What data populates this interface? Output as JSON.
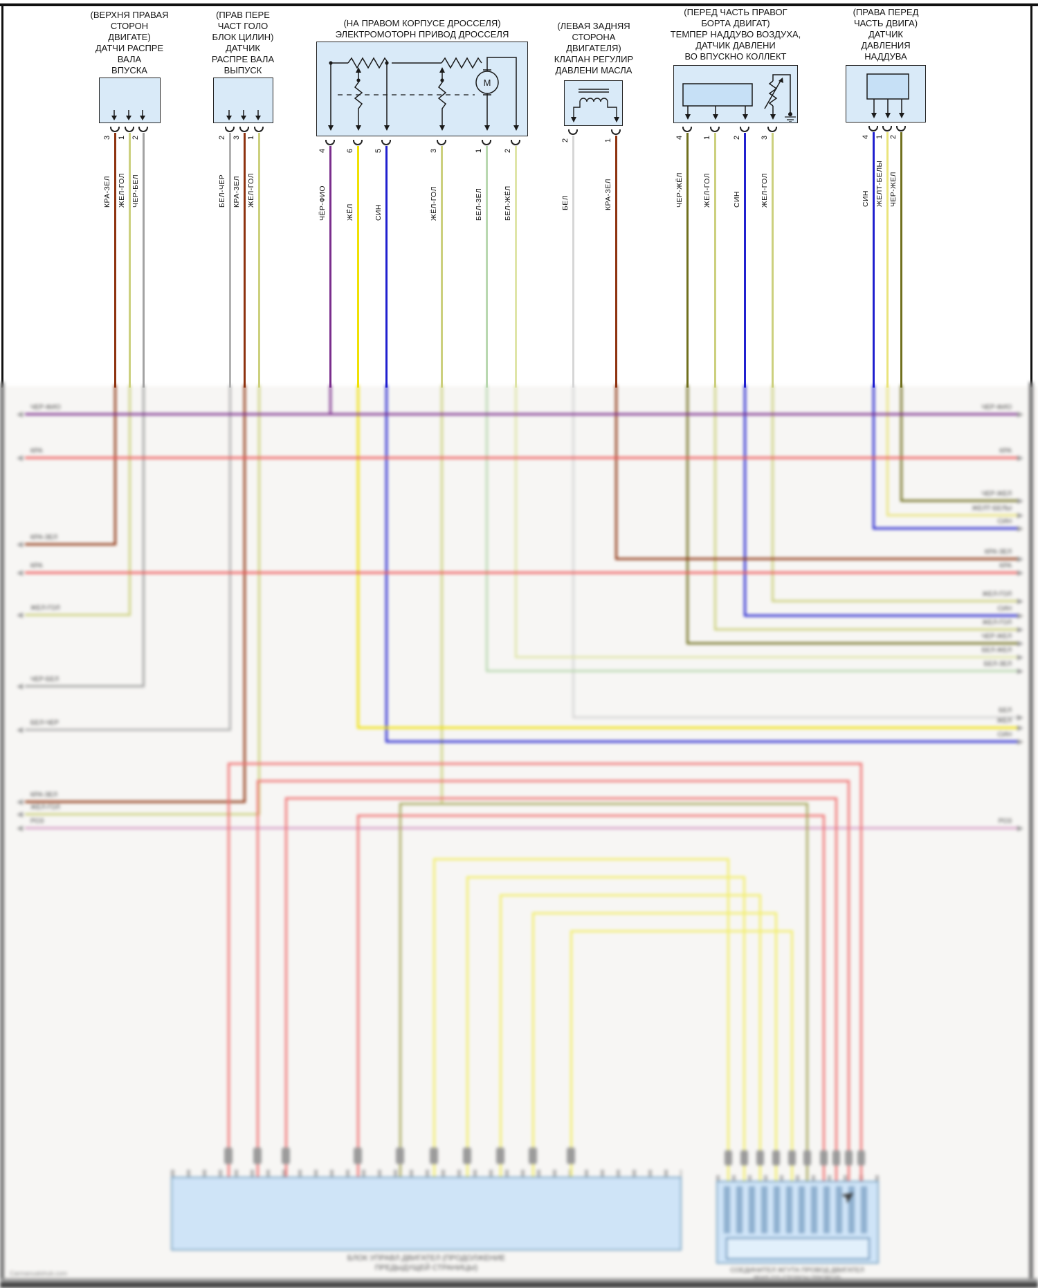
{
  "diagram_type": "automotive-wiring-diagram",
  "language": "ru",
  "colors": {
    "kra_zel": "#8e3310",
    "zhel_gol": "#ccd07e",
    "cher_bel": "#a3a3a3",
    "bel_cher": "#b0b0b0",
    "cher_fio": "#7a2d8c",
    "zhel": "#f0e104",
    "sin": "#2020cf",
    "bel_zel": "#b9d8b0",
    "bel_zhel": "#dfe5a8",
    "bel": "#d6d6d6",
    "cher_zhel": "#70701e",
    "zhelt_bely": "#eae47c",
    "red": "#ee5a5a",
    "pink": "#d79fc7",
    "nest_red": "#f07373",
    "nest_yellow": "#f2ee6e",
    "nest_olive": "#a9a95f",
    "box_fill": "#d9eaf8"
  },
  "components": [
    {
      "id": "camshaft-sensor-intake",
      "label": "(ВЕРХНЯ ПРАВАЯ\nСТОРОН\nДВИГАТЕ)\nДАТЧИ РАСПРЕ\nВАЛА\nВПУСКА",
      "pins": [
        {
          "num": "3",
          "wire": "КРА-ЗЕЛ",
          "color": "kra_zel"
        },
        {
          "num": "1",
          "wire": "ЖЕЛ-ГОЛ",
          "color": "zhel_gol"
        },
        {
          "num": "2",
          "wire": "ЧЕР-БЕЛ",
          "color": "cher_bel"
        }
      ]
    },
    {
      "id": "camshaft-sensor-exhaust",
      "label": "(ПРАВ ПЕРЕ\nЧАСТ ГОЛО\nБЛОК ЦИЛИН)\nДАТЧИК\nРАСПРЕ ВАЛА\nВЫПУСК",
      "pins": [
        {
          "num": "2",
          "wire": "БЕЛ-ЧЕР",
          "color": "bel_cher"
        },
        {
          "num": "3",
          "wire": "КРА-ЗЕЛ",
          "color": "kra_zel"
        },
        {
          "num": "1",
          "wire": "ЖЕЛ-ГОЛ",
          "color": "zhel_gol"
        }
      ]
    },
    {
      "id": "throttle-motor",
      "label": "(НА ПРАВОМ КОРПУСЕ ДРОССЕЛЯ)\nЭЛЕКТРОМОТОРН ПРИВОД ДРОССЕЛЯ",
      "pins": [
        {
          "num": "4",
          "wire": "ЧЁР-ФИО",
          "color": "cher_fio"
        },
        {
          "num": "6",
          "wire": "ЖЁЛ",
          "color": "zhel"
        },
        {
          "num": "5",
          "wire": "СИН",
          "color": "sin"
        },
        {
          "num": "3",
          "wire": "ЖЁЛ-ГОЛ",
          "color": "zhel_gol"
        },
        {
          "num": "1",
          "wire": "БЕЛ-ЗЕЛ",
          "color": "bel_zel"
        },
        {
          "num": "2",
          "wire": "БЕЛ-ЖЁЛ",
          "color": "bel_zhel"
        }
      ]
    },
    {
      "id": "oil-pressure-control-valve",
      "label": "(ЛЕВАЯ ЗАДНЯЯ\nСТОРОНА\nДВИГАТЕЛЯ)\nКЛАПАН РЕГУЛИР\nДАВЛЕНИ МАСЛА",
      "pins": [
        {
          "num": "2",
          "wire": "БЕЛ",
          "color": "bel"
        },
        {
          "num": "1",
          "wire": "КРА-ЗЕЛ",
          "color": "kra_zel"
        }
      ]
    },
    {
      "id": "boost-air-temp-manifold-pressure-sensor",
      "label": "(ПЕРЕД ЧАСТЬ ПРАВОГ\nБОРТА ДВИГАТ)\nТЕМПЕР НАДДУВО ВОЗДУХА,\nДАТЧИК ДАВЛЕНИ\nВО ВПУСКНО КОЛЛЕКТ",
      "pins": [
        {
          "num": "4",
          "wire": "ЧЕР-ЖЁЛ",
          "color": "cher_zhel"
        },
        {
          "num": "1",
          "wire": "ЖЕЛ-ГОЛ",
          "color": "zhel_gol"
        },
        {
          "num": "2",
          "wire": "СИН",
          "color": "sin"
        },
        {
          "num": "3",
          "wire": "ЖЕЛ-ГОЛ",
          "color": "zhel_gol"
        }
      ]
    },
    {
      "id": "boost-pressure-sensor",
      "label": "(ПРАВА ПЕРЕД\nЧАСТЬ ДВИГА)\nДАТЧИК\nДАВЛЕНИЯ\nНАДДУВА",
      "pins": [
        {
          "num": "4",
          "wire": "СИН",
          "color": "sin"
        },
        {
          "num": "1",
          "wire": "ЖЕЛТ-БЕЛЫ",
          "color": "zhelt_bely"
        },
        {
          "num": "2",
          "wire": "ЧЕР-ЖЕЛ",
          "color": "cher_zhel"
        }
      ]
    }
  ],
  "middle": {
    "left_rows": [
      {
        "label": "ЧЕР-ФИО",
        "color": "cher_fio",
        "right_label": "ЧЕР-ФИО"
      },
      {
        "label": "КРА",
        "color": "red",
        "right_label": "КРА"
      },
      {
        "label": "КРА-ЗЕЛ",
        "color": "kra_zel"
      },
      {
        "label": "КРА",
        "color": "red",
        "right_label": "КРА"
      },
      {
        "label": "ЖЕЛ-ГОЛ",
        "color": "zhel_gol"
      },
      {
        "label": "ЧЕР-БЕЛ",
        "color": "cher_bel"
      },
      {
        "label": "БЕЛ-ЧЕР",
        "color": "bel_cher"
      },
      {
        "label": "КРА-ЗЕЛ",
        "color": "kra_zel"
      },
      {
        "label": "ЖЕЛ-ГОЛ",
        "color": "zhel_gol"
      },
      {
        "label": "РОЗ",
        "color": "pink",
        "right_label": "РОЗ"
      }
    ],
    "right_rows": [
      {
        "label": "ЧЕР-ЖЕЛ",
        "color": "cher_zhel"
      },
      {
        "label": "ЖЕЛТ-БЕЛЫ",
        "color": "zhelt_bely"
      },
      {
        "label": "СИН",
        "color": "sin"
      },
      {
        "label": "КРА-ЗЕЛ",
        "color": "kra_zel"
      },
      {
        "label": "ЖЕЛ-ГОЛ",
        "color": "zhel_gol"
      },
      {
        "label": "СИН",
        "color": "sin"
      },
      {
        "label": "ЖЕЛ-ГОЛ",
        "color": "zhel_gol"
      },
      {
        "label": "ЧЕР-ЖЕЛ",
        "color": "cher_zhel"
      },
      {
        "label": "БЕЛ-ЖЕЛ",
        "color": "bel_zhel"
      },
      {
        "label": "БЕЛ-ЗЕЛ",
        "color": "bel_zel"
      },
      {
        "label": "БЕЛ",
        "color": "bel"
      },
      {
        "label": "ЖЕЛ",
        "color": "zhel"
      },
      {
        "label": "СИН",
        "color": "sin"
      }
    ]
  },
  "bottom": {
    "ecu_caption_line1": "БЛОК УПРАВЛ ДВИГАТЕЛ (ПРОДОЛЖЕНИЕ",
    "ecu_caption_line2": "ПРЕДЫДУЩЕЙ СТРАНИЦЫ)",
    "connector_caption_line1": "СОЕДИНИТЕЛ ЖГУТА ПРОВОД ДВИГАТЕЛ",
    "connector_caption_line2": "(ВИД СО СТОРОН ПРОВОД)"
  },
  "footer": {
    "watermark": "Carmanualshub.com"
  }
}
